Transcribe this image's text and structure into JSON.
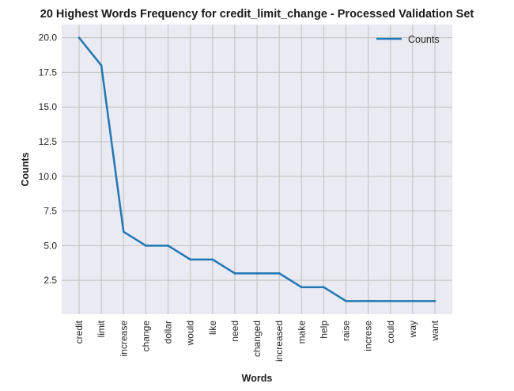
{
  "chart_data": {
    "type": "line",
    "title": "20 Highest Words Frequency for credit_limit_change - Processed Validation Set",
    "xlabel": "Words",
    "ylabel": "Counts",
    "categories": [
      "credit",
      "limit",
      "increase",
      "change",
      "dollar",
      "would",
      "like",
      "need",
      "changed",
      "increased",
      "make",
      "help",
      "raise",
      "increse",
      "could",
      "way",
      "want"
    ],
    "series": [
      {
        "name": "Counts",
        "values": [
          20,
          18,
          6,
          5,
          5,
          4,
          4,
          3,
          3,
          3,
          2,
          2,
          1,
          1,
          1,
          1,
          1
        ],
        "color": "#1f77b4"
      }
    ],
    "yticks": [
      "2.5",
      "5.0",
      "7.5",
      "10.0",
      "12.5",
      "15.0",
      "17.5",
      "20.0"
    ],
    "ylim": [
      0.05,
      20.95
    ],
    "grid": true,
    "legend_position": "top-right",
    "background_color": "#eaeaf2",
    "grid_color": "#c0c0c0"
  }
}
